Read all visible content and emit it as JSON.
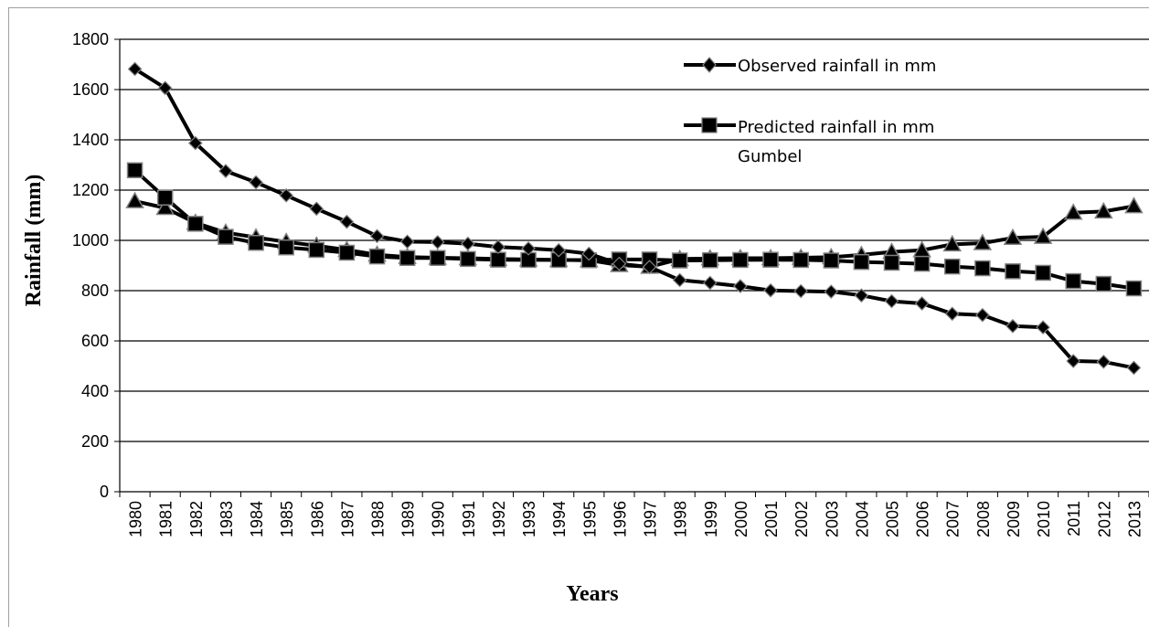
{
  "chart_data": {
    "type": "line",
    "xlabel": "Years",
    "ylabel": "Rainfall (mm)",
    "ylim": [
      0,
      1800
    ],
    "yticks": [
      "0",
      "200",
      "400",
      "600",
      "800",
      "1000",
      "1200",
      "1400",
      "1600",
      "1800"
    ],
    "grid": "horizontal",
    "legend_position": "top-right",
    "categories": [
      "1980",
      "1981",
      "1982",
      "1983",
      "1984",
      "1985",
      "1986",
      "1987",
      "1988",
      "1989",
      "1990",
      "1991",
      "1992",
      "1993",
      "1994",
      "1995",
      "1996",
      "1997",
      "1998",
      "1999",
      "2000",
      "2001",
      "2002",
      "2003",
      "2004",
      "2005",
      "2006",
      "2007",
      "2008",
      "2009",
      "2010",
      "2011",
      "2012",
      "2013"
    ],
    "series": [
      {
        "name": "Observed rainfall in mm",
        "marker": "diamond",
        "color": "#000000",
        "values": [
          1682,
          1606,
          1387,
          1276,
          1231,
          1179,
          1126,
          1074,
          1017,
          995,
          993,
          987,
          974,
          968,
          961,
          947,
          907,
          894,
          842,
          831,
          818,
          801,
          798,
          796,
          781,
          758,
          749,
          708,
          703,
          659,
          654,
          520,
          517,
          493
        ]
      },
      {
        "name": "Predicted rainfall in mm Gumbel",
        "marker": "square",
        "color": "#000000",
        "values": [
          1279,
          1170,
          1066,
          1014,
          990,
          972,
          962,
          951,
          936,
          930,
          930,
          926,
          923,
          922,
          922,
          921,
          924,
          924,
          920,
          921,
          922,
          923,
          922,
          920,
          914,
          911,
          907,
          896,
          889,
          877,
          871,
          838,
          827,
          809
        ]
      },
      {
        "name": "",
        "marker": "triangle",
        "color": "#000000",
        "values": [
          1156,
          1129,
          1070,
          1031,
          1012,
          994,
          979,
          962,
          943,
          934,
          931,
          929,
          926,
          924,
          922,
          921,
          902,
          895,
          926,
          928,
          929,
          929,
          931,
          933,
          942,
          954,
          961,
          984,
          989,
          1010,
          1014,
          1110,
          1115,
          1136
        ]
      }
    ]
  }
}
